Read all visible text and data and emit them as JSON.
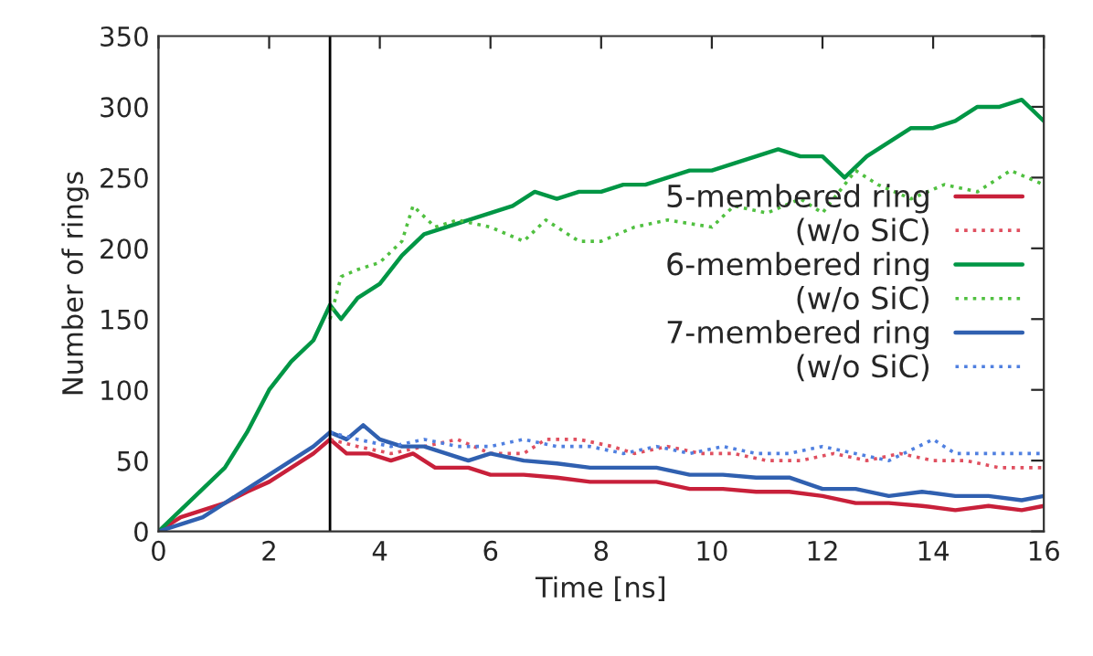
{
  "chart_data": {
    "type": "line",
    "xlabel": "Time [ns]",
    "ylabel": "Number of rings",
    "xlim": [
      0,
      16
    ],
    "ylim": [
      0,
      350
    ],
    "xticks": [
      0,
      2,
      4,
      6,
      8,
      10,
      12,
      14,
      16
    ],
    "yticks": [
      0,
      50,
      100,
      150,
      200,
      250,
      300,
      350
    ],
    "grid": false,
    "legend": "right",
    "marker": "none",
    "ref_lines": [
      {
        "axis": "x",
        "value": 3.1,
        "color": "#000000"
      }
    ],
    "series": [
      {
        "name": "5-membered ring",
        "color": "#c8203a",
        "line_style": "solid",
        "x": [
          0,
          0.4,
          0.8,
          1.2,
          1.6,
          2.0,
          2.4,
          2.8,
          3.1,
          3.4,
          3.8,
          4.2,
          4.6,
          5.0,
          5.6,
          6.0,
          6.6,
          7.2,
          7.8,
          8.4,
          9.0,
          9.6,
          10.2,
          10.8,
          11.4,
          12.0,
          12.6,
          13.2,
          13.8,
          14.4,
          15.0,
          15.6,
          16
        ],
        "values": [
          0,
          10,
          15,
          20,
          28,
          35,
          45,
          55,
          65,
          55,
          55,
          50,
          55,
          45,
          45,
          40,
          40,
          38,
          35,
          35,
          35,
          30,
          30,
          28,
          28,
          25,
          20,
          20,
          18,
          15,
          18,
          15,
          18
        ]
      },
      {
        "name": "(w/o SiC)",
        "color": "#e05060",
        "line_style": "dotted",
        "x": [
          3.1,
          3.6,
          4.2,
          4.8,
          5.4,
          6.0,
          6.6,
          7.0,
          7.6,
          8.2,
          8.6,
          9.2,
          9.8,
          10.4,
          11.0,
          11.6,
          12.2,
          12.8,
          13.4,
          14.0,
          14.6,
          15.2,
          16
        ],
        "values": [
          65,
          60,
          55,
          60,
          65,
          55,
          55,
          65,
          65,
          60,
          55,
          60,
          55,
          55,
          50,
          50,
          55,
          50,
          55,
          50,
          50,
          45,
          45
        ]
      },
      {
        "name": "6-membered ring",
        "color": "#009645",
        "line_style": "solid",
        "x": [
          0,
          0.4,
          0.8,
          1.2,
          1.6,
          2.0,
          2.4,
          2.8,
          3.1,
          3.3,
          3.6,
          4.0,
          4.4,
          4.8,
          5.2,
          5.6,
          6.0,
          6.4,
          6.8,
          7.2,
          7.6,
          8.0,
          8.4,
          8.8,
          9.2,
          9.6,
          10.0,
          10.4,
          10.8,
          11.2,
          11.6,
          12.0,
          12.4,
          12.8,
          13.2,
          13.6,
          14.0,
          14.4,
          14.8,
          15.2,
          15.6,
          16
        ],
        "values": [
          0,
          15,
          30,
          45,
          70,
          100,
          120,
          135,
          160,
          150,
          165,
          175,
          195,
          210,
          215,
          220,
          225,
          230,
          240,
          235,
          240,
          240,
          245,
          245,
          250,
          255,
          255,
          260,
          265,
          270,
          265,
          265,
          250,
          265,
          275,
          285,
          285,
          290,
          300,
          300,
          305,
          290
        ]
      },
      {
        "name": "(w/o SiC)",
        "color": "#50c040",
        "line_style": "dotted",
        "x": [
          3.1,
          3.3,
          3.6,
          4.0,
          4.4,
          4.6,
          5.0,
          5.4,
          6.0,
          6.6,
          7.0,
          7.6,
          8.0,
          8.6,
          9.2,
          10.0,
          10.4,
          11.0,
          11.6,
          12.0,
          12.6,
          13.0,
          13.6,
          14.2,
          14.8,
          15.4,
          16
        ],
        "values": [
          150,
          180,
          185,
          190,
          205,
          230,
          215,
          220,
          215,
          205,
          220,
          205,
          205,
          215,
          220,
          215,
          230,
          225,
          235,
          225,
          255,
          245,
          235,
          245,
          240,
          255,
          245
        ]
      },
      {
        "name": "7-membered ring",
        "color": "#3060b0",
        "line_style": "solid",
        "x": [
          0,
          0.4,
          0.8,
          1.2,
          1.6,
          2.0,
          2.4,
          2.8,
          3.1,
          3.4,
          3.7,
          4.0,
          4.4,
          4.8,
          5.2,
          5.6,
          6.0,
          6.6,
          7.2,
          7.8,
          8.4,
          9.0,
          9.6,
          10.2,
          10.8,
          11.4,
          12.0,
          12.6,
          13.2,
          13.8,
          14.4,
          15.0,
          15.6,
          16
        ],
        "values": [
          0,
          5,
          10,
          20,
          30,
          40,
          50,
          60,
          70,
          65,
          75,
          65,
          60,
          60,
          55,
          50,
          55,
          50,
          48,
          45,
          45,
          45,
          40,
          40,
          38,
          38,
          30,
          30,
          25,
          28,
          25,
          25,
          22,
          25
        ]
      },
      {
        "name": "(w/o SiC)",
        "color": "#5080e0",
        "line_style": "dotted",
        "x": [
          3.1,
          3.6,
          4.2,
          4.8,
          5.4,
          6.0,
          6.6,
          7.2,
          7.8,
          8.4,
          9.0,
          9.6,
          10.2,
          10.8,
          11.4,
          12.0,
          12.6,
          13.2,
          14.0,
          14.4,
          15.0,
          16
        ],
        "values": [
          70,
          65,
          60,
          65,
          60,
          60,
          65,
          60,
          60,
          55,
          60,
          55,
          60,
          55,
          55,
          60,
          55,
          50,
          65,
          55,
          55,
          55
        ]
      }
    ]
  }
}
